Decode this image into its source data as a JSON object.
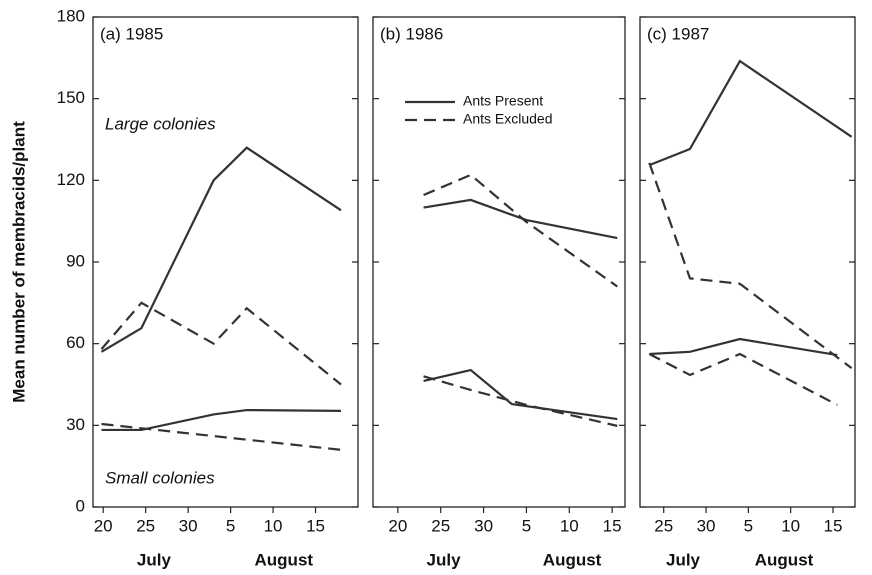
{
  "chart_data": [
    {
      "type": "line",
      "title": "(a) 1985",
      "ylabel": "Mean number of membracids/plant",
      "annotations": [
        "Large colonies",
        "Small colonies"
      ],
      "x_labels": [
        "July",
        "August"
      ],
      "xlim": [
        18.8,
        50
      ],
      "xticks": [
        20,
        25,
        30,
        {
          "value": 35,
          "label": "5"
        },
        {
          "value": 40,
          "label": "10"
        },
        {
          "value": 45,
          "label": "15"
        }
      ],
      "ylim": [
        0,
        180
      ],
      "yticks": [
        0,
        30,
        60,
        90,
        120,
        150,
        180
      ],
      "series": [
        {
          "dash": false,
          "color": "#333333",
          "x": [
            19.8,
            24.5,
            33,
            36.9,
            48
          ],
          "values": [
            57,
            65.7,
            120,
            132,
            109
          ]
        },
        {
          "dash": true,
          "color": "#333333",
          "x": [
            19.8,
            24.5,
            33,
            36.9,
            48
          ],
          "values": [
            58,
            75,
            60,
            73,
            45
          ]
        },
        {
          "dash": false,
          "color": "#333333",
          "x": [
            19.8,
            24.5,
            33,
            36.9,
            48
          ],
          "values": [
            28.3,
            28.3,
            34,
            35.6,
            35.3
          ]
        },
        {
          "dash": true,
          "color": "#333333",
          "x": [
            19.8,
            48
          ],
          "values": [
            30.5,
            21
          ]
        }
      ]
    },
    {
      "type": "line",
      "title": "(b) 1986",
      "legend": [
        "Ants Present",
        "Ants Excluded"
      ],
      "x_labels": [
        "July",
        "August"
      ],
      "xlim": [
        17.1,
        46.5
      ],
      "xticks": [
        20,
        25,
        30,
        {
          "value": 35,
          "label": "5"
        },
        {
          "value": 40,
          "label": "10"
        },
        {
          "value": 45,
          "label": "15"
        }
      ],
      "ylim": [
        0,
        180
      ],
      "yticks": [
        0,
        30,
        60,
        90,
        120,
        150,
        180
      ],
      "series": [
        {
          "dash": false,
          "color": "#333333",
          "x": [
            23,
            28.5,
            35,
            45.6
          ],
          "values": [
            110,
            112.8,
            105.4,
            98.8
          ]
        },
        {
          "dash": true,
          "color": "#333333",
          "x": [
            23,
            28.5,
            35,
            45.6
          ],
          "values": [
            114.6,
            122,
            104.7,
            81
          ]
        },
        {
          "dash": false,
          "color": "#333333",
          "x": [
            23,
            28.5,
            33.3,
            45.6
          ],
          "values": [
            46.3,
            50.3,
            37.8,
            32.3
          ]
        },
        {
          "dash": true,
          "color": "#333333",
          "x": [
            23,
            28.5,
            35,
            45.6
          ],
          "values": [
            48,
            43,
            37.5,
            29.8
          ]
        }
      ]
    },
    {
      "type": "line",
      "title": "(c) 1987",
      "x_labels": [
        "July",
        "August"
      ],
      "xlim": [
        22.2,
        47.6
      ],
      "xticks": [
        25,
        30,
        {
          "value": 35,
          "label": "5"
        },
        {
          "value": 40,
          "label": "10"
        },
        {
          "value": 45,
          "label": "15"
        }
      ],
      "ylim": [
        0,
        180
      ],
      "yticks": [
        0,
        30,
        60,
        90,
        120,
        150,
        180
      ],
      "series": [
        {
          "dash": false,
          "color": "#333333",
          "x": [
            23.3,
            28.1,
            34,
            47.2
          ],
          "values": [
            125.6,
            131.5,
            163.8,
            136
          ]
        },
        {
          "dash": true,
          "color": "#333333",
          "x": [
            23.3,
            28.1,
            34,
            47.2
          ],
          "values": [
            126.4,
            84,
            82,
            51
          ]
        },
        {
          "dash": false,
          "color": "#333333",
          "x": [
            23.3,
            28.1,
            34,
            45.5
          ],
          "values": [
            56.2,
            57,
            61.7,
            55.8
          ]
        },
        {
          "dash": true,
          "color": "#333333",
          "x": [
            23.3,
            28.1,
            34,
            45.5
          ],
          "values": [
            56.2,
            48.5,
            56.2,
            37.5
          ]
        }
      ]
    }
  ]
}
